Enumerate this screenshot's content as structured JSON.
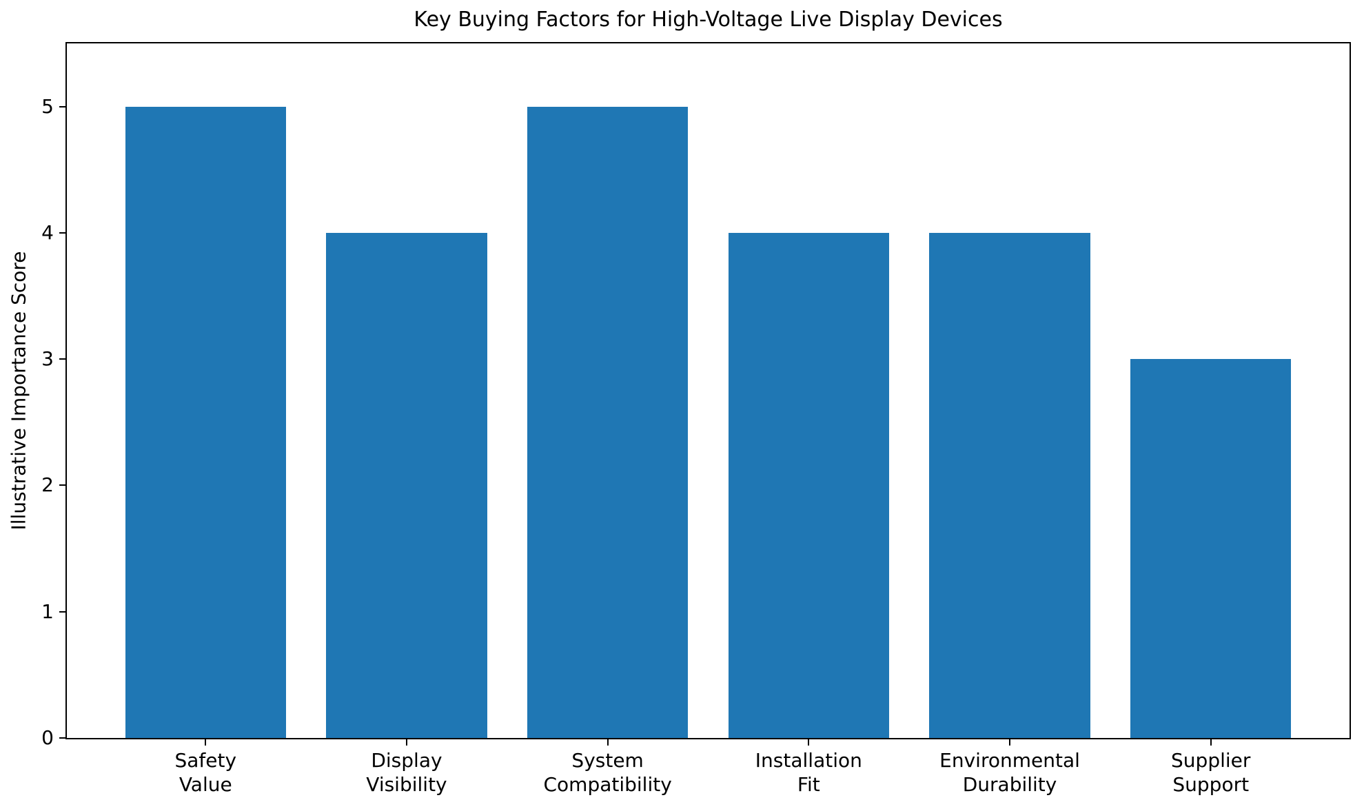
{
  "chart_data": {
    "type": "bar",
    "title": "Key Buying Factors for High-Voltage Live Display Devices",
    "ylabel": "Illustrative Importance Score",
    "xlabel": "",
    "categories": [
      "Safety\nValue",
      "Display\nVisibility",
      "System\nCompatibility",
      "Installation\nFit",
      "Environmental\nDurability",
      "Supplier\nSupport"
    ],
    "values": [
      5,
      4,
      5,
      4,
      4,
      3
    ],
    "yticks": [
      0,
      1,
      2,
      3,
      4,
      5
    ],
    "ylim": [
      0,
      5.5
    ],
    "bar_color": "#1f77b4",
    "bar_width": 0.8,
    "x_margin": 0.05,
    "grid": false,
    "legend": "none",
    "background": "#ffffff",
    "spine_color": "#000000"
  }
}
